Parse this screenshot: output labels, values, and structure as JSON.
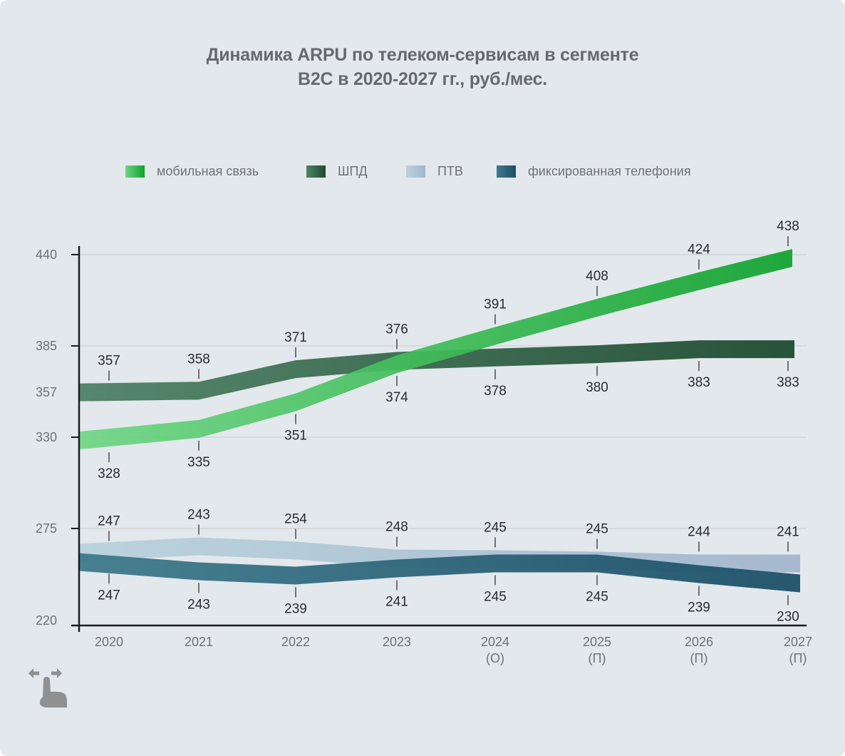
{
  "title": {
    "line1": "Динамика ARPU по телеком-сервисам в сегменте",
    "line2": "B2C в 2020-2027 гг., руб./мес."
  },
  "legend": [
    {
      "label": "мобильная связь",
      "color_from": "#6fd684",
      "color_to": "#0ea12c"
    },
    {
      "label": "ШПД",
      "color_from": "#4f8266",
      "color_to": "#1d4b30"
    },
    {
      "label": "ПТВ",
      "color_from": "#b9d2dc",
      "color_to": "#a2b6cd"
    },
    {
      "label": "фиксированная телефония",
      "color_from": "#3f7a8c",
      "color_to": "#1d5068"
    }
  ],
  "icons": {
    "gesture": "swipe-horizontal-icon"
  },
  "chart_data": {
    "type": "line",
    "title": "Динамика ARPU по телеком-сервисам в сегменте B2C в 2020-2027 гг., руб./мес.",
    "xlabel": "",
    "ylabel": "",
    "categories": [
      "2020",
      "2021",
      "2022",
      "2023",
      "2024\n(О)",
      "2025\n(П)",
      "2026\n(П)",
      "2027\n(П)"
    ],
    "x_labels": [
      [
        "2020"
      ],
      [
        "2021"
      ],
      [
        "2022"
      ],
      [
        "2023"
      ],
      [
        "2024",
        "(О)"
      ],
      [
        "2025",
        "(П)"
      ],
      [
        "2026",
        "(П)"
      ],
      [
        "2027",
        "(П)"
      ]
    ],
    "y_ticks": [
      "440",
      "385",
      "357",
      "330",
      "275",
      "220"
    ],
    "y_axis_note": "broken axis: upper segment 330–440, lower segment 220–275",
    "grid": true,
    "legend_position": "top",
    "series": [
      {
        "name": "мобильная связь",
        "values": [
          328,
          335,
          351,
          374,
          391,
          408,
          424,
          438
        ],
        "label_side": [
          "below",
          "below",
          "below",
          "below",
          "above",
          "above",
          "above",
          "above"
        ]
      },
      {
        "name": "ШПД",
        "values": [
          357,
          358,
          371,
          376,
          378,
          380,
          383,
          383
        ],
        "label_side": [
          "above",
          "above",
          "above",
          "above",
          "below",
          "below",
          "below",
          "below"
        ]
      },
      {
        "name": "ПТВ",
        "values": [
          247,
          243,
          254,
          248,
          245,
          245,
          244,
          241
        ],
        "label_side": [
          "above",
          "above",
          "above",
          "above",
          "above",
          "above",
          "above",
          "above"
        ]
      },
      {
        "name": "фиксированная телефония",
        "values": [
          247,
          243,
          239,
          241,
          245,
          245,
          239,
          230
        ],
        "label_side": [
          "below",
          "below",
          "below",
          "below",
          "below",
          "below",
          "below",
          "below"
        ]
      }
    ]
  }
}
